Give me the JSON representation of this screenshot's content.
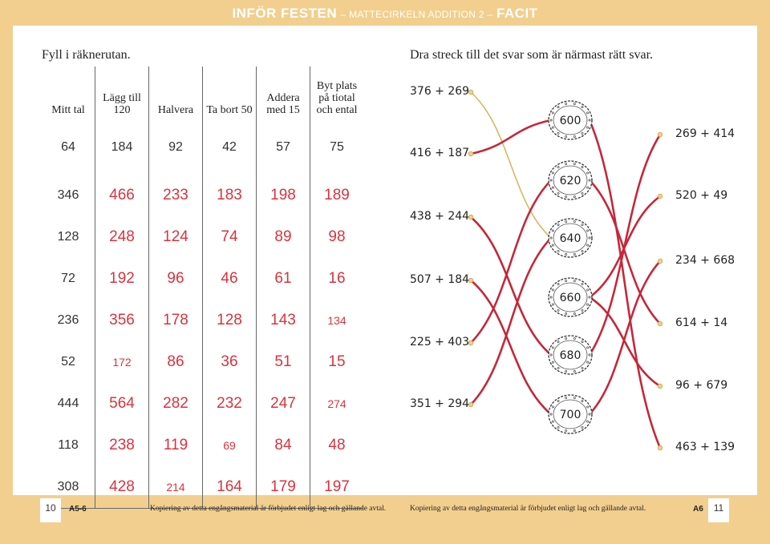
{
  "header": {
    "title": "INFÖR FESTEN",
    "subtitle": "– MATTECIRKELN ADDITION 2 –",
    "facit": "FACIT"
  },
  "left": {
    "instruction": "Fyll i räknerutan.",
    "columns": [
      "Mitt tal",
      "Lägg till 120",
      "Halvera",
      "Ta bort 50",
      "Addera med 15",
      "Byt plats på tiotal och ental"
    ],
    "rows": [
      [
        "64",
        "184",
        "92",
        "42",
        "57",
        "75"
      ],
      [
        "346",
        "466",
        "233",
        "183",
        "198",
        "189"
      ],
      [
        "128",
        "248",
        "124",
        "74",
        "89",
        "98"
      ],
      [
        "72",
        "192",
        "96",
        "46",
        "61",
        "16"
      ],
      [
        "236",
        "356",
        "178",
        "128",
        "143",
        "134"
      ],
      [
        "52",
        "172",
        "86",
        "36",
        "51",
        "15"
      ],
      [
        "444",
        "564",
        "282",
        "232",
        "247",
        "274"
      ],
      [
        "118",
        "238",
        "119",
        "69",
        "84",
        "48"
      ],
      [
        "308",
        "428",
        "214",
        "164",
        "179",
        "197"
      ]
    ]
  },
  "right": {
    "instruction": "Dra streck till det svar som är närmast rätt svar.",
    "left_exprs": [
      "376 + 269",
      "416 + 187",
      "438 + 244",
      "507 + 184",
      "225 + 403",
      "351 + 294"
    ],
    "cakes": [
      "600",
      "620",
      "640",
      "660",
      "680",
      "700"
    ],
    "right_exprs": [
      "269 + 414",
      "520 + 49",
      "234 + 668",
      "614 + 14",
      "96 + 679",
      "463 + 139"
    ]
  },
  "footer": {
    "page_left": "10",
    "code_left": "A5-6",
    "copyright": "Kopiering av detta engångsmaterial är förbjudet enligt lag och gällande avtal.",
    "page_right": "11",
    "code_right": "A6"
  },
  "colors": {
    "accent": "#f2cf8e",
    "answer": "#d9333f",
    "line": "#c4283a",
    "guide": "#d8b35a"
  }
}
